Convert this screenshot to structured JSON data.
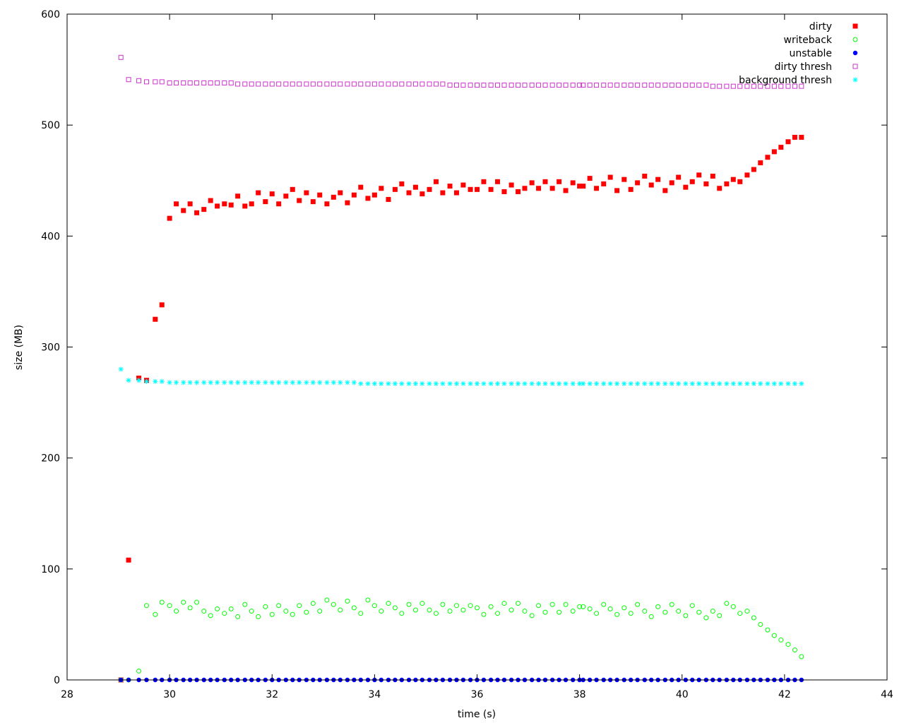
{
  "chart_data": {
    "type": "scatter",
    "title": "",
    "xlabel": "time (s)",
    "ylabel": "size (MB)",
    "xlim": [
      28,
      44
    ],
    "ylim": [
      0,
      600
    ],
    "xticks": [
      28,
      30,
      32,
      34,
      36,
      38,
      40,
      42,
      44
    ],
    "yticks": [
      0,
      100,
      200,
      300,
      400,
      500,
      600
    ],
    "grid": false,
    "legend_position": "top-right",
    "series": [
      {
        "name": "dirty",
        "color": "#ff0000",
        "marker": "filled-square",
        "x": [
          29.05,
          29.2,
          29.4,
          29.55,
          29.72,
          29.85,
          30.0,
          30.13,
          30.27,
          30.4,
          30.53,
          30.67,
          30.8,
          30.93,
          31.07,
          31.2,
          31.33,
          31.47,
          31.6,
          31.73,
          31.87,
          32.0,
          32.13,
          32.27,
          32.4,
          32.53,
          32.67,
          32.8,
          32.93,
          33.07,
          33.2,
          33.33,
          33.47,
          33.6,
          33.73,
          33.87,
          34.0,
          34.13,
          34.27,
          34.4,
          34.53,
          34.67,
          34.8,
          34.93,
          35.07,
          35.2,
          35.33,
          35.47,
          35.6,
          35.73,
          35.87,
          36.0,
          36.13,
          36.27,
          36.4,
          36.53,
          36.67,
          36.8,
          36.93,
          37.07,
          37.2,
          37.33,
          37.47,
          37.6,
          37.73,
          37.87,
          38.0,
          38.07,
          38.2,
          38.33,
          38.47,
          38.6,
          38.73,
          38.87,
          39.0,
          39.13,
          39.27,
          39.4,
          39.53,
          39.67,
          39.8,
          39.93,
          40.07,
          40.2,
          40.33,
          40.47,
          40.6,
          40.73,
          40.87,
          41.0,
          41.13,
          41.27,
          41.4,
          41.53,
          41.67,
          41.8,
          41.93,
          42.07,
          42.2,
          42.33
        ],
        "y": [
          0,
          108,
          272,
          270,
          325,
          338,
          416,
          429,
          423,
          429,
          421,
          424,
          432,
          427,
          429,
          428,
          436,
          427,
          429,
          439,
          431,
          438,
          429,
          436,
          442,
          432,
          439,
          431,
          437,
          429,
          435,
          439,
          430,
          437,
          444,
          434,
          437,
          443,
          433,
          442,
          447,
          439,
          444,
          438,
          442,
          449,
          439,
          445,
          439,
          446,
          442,
          442,
          449,
          442,
          449,
          440,
          446,
          440,
          443,
          448,
          443,
          449,
          443,
          449,
          441,
          448,
          445,
          445,
          452,
          443,
          447,
          453,
          441,
          451,
          442,
          448,
          454,
          446,
          451,
          441,
          448,
          453,
          444,
          449,
          455,
          447,
          454,
          443,
          447,
          451,
          449,
          455,
          460,
          466,
          471,
          476,
          480,
          485,
          489,
          489
        ]
      },
      {
        "name": "writeback",
        "color": "#00ff00",
        "marker": "hollow-circle",
        "x": [
          29.05,
          29.2,
          29.4,
          29.55,
          29.72,
          29.85,
          30.0,
          30.13,
          30.27,
          30.4,
          30.53,
          30.67,
          30.8,
          30.93,
          31.07,
          31.2,
          31.33,
          31.47,
          31.6,
          31.73,
          31.87,
          32.0,
          32.13,
          32.27,
          32.4,
          32.53,
          32.67,
          32.8,
          32.93,
          33.07,
          33.2,
          33.33,
          33.47,
          33.6,
          33.73,
          33.87,
          34.0,
          34.13,
          34.27,
          34.4,
          34.53,
          34.67,
          34.8,
          34.93,
          35.07,
          35.2,
          35.33,
          35.47,
          35.6,
          35.73,
          35.87,
          36.0,
          36.13,
          36.27,
          36.4,
          36.53,
          36.67,
          36.8,
          36.93,
          37.07,
          37.2,
          37.33,
          37.47,
          37.6,
          37.73,
          37.87,
          38.0,
          38.07,
          38.2,
          38.33,
          38.47,
          38.6,
          38.73,
          38.87,
          39.0,
          39.13,
          39.27,
          39.4,
          39.53,
          39.67,
          39.8,
          39.93,
          40.07,
          40.2,
          40.33,
          40.47,
          40.6,
          40.73,
          40.87,
          41.0,
          41.13,
          41.27,
          41.4,
          41.53,
          41.67,
          41.8,
          41.93,
          42.07,
          42.2,
          42.33
        ],
        "y": [
          0,
          0,
          8,
          67,
          59,
          70,
          67,
          62,
          70,
          65,
          70,
          62,
          58,
          64,
          60,
          64,
          57,
          68,
          62,
          57,
          66,
          59,
          67,
          62,
          59,
          67,
          61,
          69,
          62,
          72,
          68,
          63,
          71,
          65,
          60,
          72,
          67,
          62,
          69,
          65,
          60,
          68,
          63,
          69,
          63,
          60,
          68,
          62,
          67,
          63,
          67,
          65,
          59,
          66,
          60,
          69,
          63,
          69,
          62,
          58,
          67,
          61,
          68,
          61,
          68,
          62,
          66,
          66,
          64,
          60,
          68,
          64,
          59,
          65,
          60,
          68,
          62,
          57,
          66,
          61,
          68,
          62,
          58,
          67,
          61,
          56,
          62,
          58,
          69,
          66,
          60,
          62,
          56,
          50,
          45,
          40,
          36,
          32,
          27,
          21
        ]
      },
      {
        "name": "unstable",
        "color": "#0000ff",
        "marker": "filled-circle",
        "x": [
          29.05,
          29.2,
          29.4,
          29.55,
          29.72,
          29.85,
          30.0,
          30.13,
          30.27,
          30.4,
          30.53,
          30.67,
          30.8,
          30.93,
          31.07,
          31.2,
          31.33,
          31.47,
          31.6,
          31.73,
          31.87,
          32.0,
          32.13,
          32.27,
          32.4,
          32.53,
          32.67,
          32.8,
          32.93,
          33.07,
          33.2,
          33.33,
          33.47,
          33.6,
          33.73,
          33.87,
          34.0,
          34.13,
          34.27,
          34.4,
          34.53,
          34.67,
          34.8,
          34.93,
          35.07,
          35.2,
          35.33,
          35.47,
          35.6,
          35.73,
          35.87,
          36.0,
          36.13,
          36.27,
          36.4,
          36.53,
          36.67,
          36.8,
          36.93,
          37.07,
          37.2,
          37.33,
          37.47,
          37.6,
          37.73,
          37.87,
          38.0,
          38.07,
          38.2,
          38.33,
          38.47,
          38.6,
          38.73,
          38.87,
          39.0,
          39.13,
          39.27,
          39.4,
          39.53,
          39.67,
          39.8,
          39.93,
          40.07,
          40.2,
          40.33,
          40.47,
          40.6,
          40.73,
          40.87,
          41.0,
          41.13,
          41.27,
          41.4,
          41.53,
          41.67,
          41.8,
          41.93,
          42.07,
          42.2,
          42.33
        ],
        "y": [
          0,
          0,
          0,
          0,
          0,
          0,
          0,
          0,
          0,
          0,
          0,
          0,
          0,
          0,
          0,
          0,
          0,
          0,
          0,
          0,
          0,
          0,
          0,
          0,
          0,
          0,
          0,
          0,
          0,
          0,
          0,
          0,
          0,
          0,
          0,
          0,
          0,
          0,
          0,
          0,
          0,
          0,
          0,
          0,
          0,
          0,
          0,
          0,
          0,
          0,
          0,
          0,
          0,
          0,
          0,
          0,
          0,
          0,
          0,
          0,
          0,
          0,
          0,
          0,
          0,
          0,
          0,
          0,
          0,
          0,
          0,
          0,
          0,
          0,
          0,
          0,
          0,
          0,
          0,
          0,
          0,
          0,
          0,
          0,
          0,
          0,
          0,
          0,
          0,
          0,
          0,
          0,
          0,
          0,
          0,
          0,
          0,
          0,
          0,
          0
        ]
      },
      {
        "name": "dirty thresh",
        "color": "#cc33cc",
        "marker": "hollow-square",
        "x": [
          29.05,
          29.2,
          29.4,
          29.55,
          29.72,
          29.85,
          30.0,
          30.13,
          30.27,
          30.4,
          30.53,
          30.67,
          30.8,
          30.93,
          31.07,
          31.2,
          31.33,
          31.47,
          31.6,
          31.73,
          31.87,
          32.0,
          32.13,
          32.27,
          32.4,
          32.53,
          32.67,
          32.8,
          32.93,
          33.07,
          33.2,
          33.33,
          33.47,
          33.6,
          33.73,
          33.87,
          34.0,
          34.13,
          34.27,
          34.4,
          34.53,
          34.67,
          34.8,
          34.93,
          35.07,
          35.2,
          35.33,
          35.47,
          35.6,
          35.73,
          35.87,
          36.0,
          36.13,
          36.27,
          36.4,
          36.53,
          36.67,
          36.8,
          36.93,
          37.07,
          37.2,
          37.33,
          37.47,
          37.6,
          37.73,
          37.87,
          38.0,
          38.07,
          38.2,
          38.33,
          38.47,
          38.6,
          38.73,
          38.87,
          39.0,
          39.13,
          39.27,
          39.4,
          39.53,
          39.67,
          39.8,
          39.93,
          40.07,
          40.2,
          40.33,
          40.47,
          40.6,
          40.73,
          40.87,
          41.0,
          41.13,
          41.27,
          41.4,
          41.53,
          41.67,
          41.8,
          41.93,
          42.07,
          42.2,
          42.33
        ],
        "y": [
          561,
          541,
          540,
          539,
          539,
          539,
          538,
          538,
          538,
          538,
          538,
          538,
          538,
          538,
          538,
          538,
          537,
          537,
          537,
          537,
          537,
          537,
          537,
          537,
          537,
          537,
          537,
          537,
          537,
          537,
          537,
          537,
          537,
          537,
          537,
          537,
          537,
          537,
          537,
          537,
          537,
          537,
          537,
          537,
          537,
          537,
          537,
          536,
          536,
          536,
          536,
          536,
          536,
          536,
          536,
          536,
          536,
          536,
          536,
          536,
          536,
          536,
          536,
          536,
          536,
          536,
          536,
          536,
          536,
          536,
          536,
          536,
          536,
          536,
          536,
          536,
          536,
          536,
          536,
          536,
          536,
          536,
          536,
          536,
          536,
          536,
          535,
          535,
          535,
          535,
          535,
          535,
          535,
          535,
          535,
          535,
          535,
          535,
          535,
          535
        ]
      },
      {
        "name": "background thresh",
        "color": "#00ffff",
        "marker": "star",
        "x": [
          29.05,
          29.2,
          29.4,
          29.55,
          29.72,
          29.85,
          30.0,
          30.13,
          30.27,
          30.4,
          30.53,
          30.67,
          30.8,
          30.93,
          31.07,
          31.2,
          31.33,
          31.47,
          31.6,
          31.73,
          31.87,
          32.0,
          32.13,
          32.27,
          32.4,
          32.53,
          32.67,
          32.8,
          32.93,
          33.07,
          33.2,
          33.33,
          33.47,
          33.6,
          33.73,
          33.87,
          34.0,
          34.13,
          34.27,
          34.4,
          34.53,
          34.67,
          34.8,
          34.93,
          35.07,
          35.2,
          35.33,
          35.47,
          35.6,
          35.73,
          35.87,
          36.0,
          36.13,
          36.27,
          36.4,
          36.53,
          36.67,
          36.8,
          36.93,
          37.07,
          37.2,
          37.33,
          37.47,
          37.6,
          37.73,
          37.87,
          38.0,
          38.07,
          38.2,
          38.33,
          38.47,
          38.6,
          38.73,
          38.87,
          39.0,
          39.13,
          39.27,
          39.4,
          39.53,
          39.67,
          39.8,
          39.93,
          40.07,
          40.2,
          40.33,
          40.47,
          40.6,
          40.73,
          40.87,
          41.0,
          41.13,
          41.27,
          41.4,
          41.53,
          41.67,
          41.8,
          41.93,
          42.07,
          42.2,
          42.33
        ],
        "y": [
          280,
          270,
          270,
          269,
          269,
          269,
          268,
          268,
          268,
          268,
          268,
          268,
          268,
          268,
          268,
          268,
          268,
          268,
          268,
          268,
          268,
          268,
          268,
          268,
          268,
          268,
          268,
          268,
          268,
          268,
          268,
          268,
          268,
          268,
          267,
          267,
          267,
          267,
          267,
          267,
          267,
          267,
          267,
          267,
          267,
          267,
          267,
          267,
          267,
          267,
          267,
          267,
          267,
          267,
          267,
          267,
          267,
          267,
          267,
          267,
          267,
          267,
          267,
          267,
          267,
          267,
          267,
          267,
          267,
          267,
          267,
          267,
          267,
          267,
          267,
          267,
          267,
          267,
          267,
          267,
          267,
          267,
          267,
          267,
          267,
          267,
          267,
          267,
          267,
          267,
          267,
          267,
          267,
          267,
          267,
          267,
          267,
          267,
          267,
          267
        ]
      }
    ]
  }
}
